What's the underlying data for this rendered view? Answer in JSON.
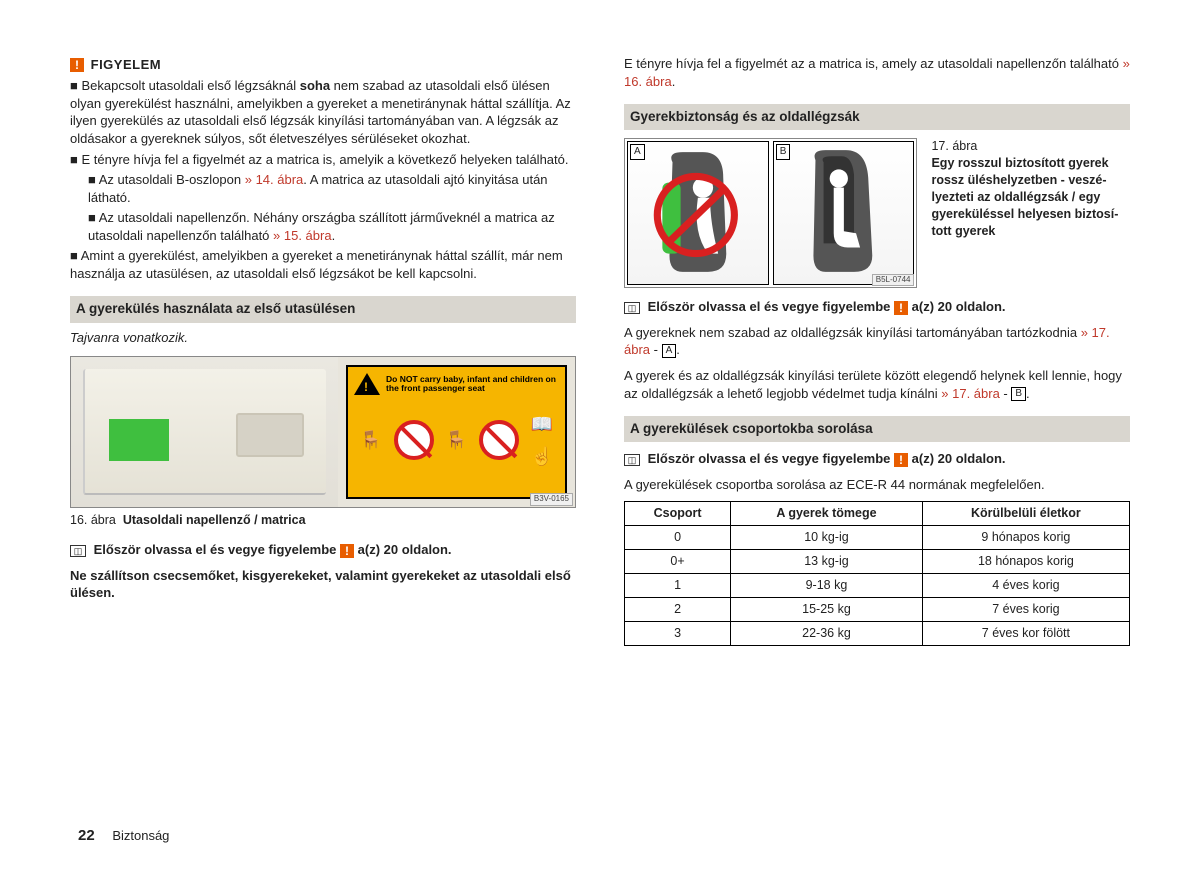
{
  "warn": {
    "title": "FIGYELEM",
    "b1a": "Bekapcsolt utasoldali első légzsáknál ",
    "b1bold": "soha",
    "b1b": " nem szabad az utasoldali első ülésen olyan gyerekülést használni, amelyikben a gyereket a menetirány­nak háttal szállítja. Az ilyen gyerekülés az utasoldali első légzsák kinyílási tartományában van. A légzsák az oldásakor a gyereknek súlyos, sőt életve­szélyes sérüléseket okozhat.",
    "b2": "E tényre hívja fel a figyelmét az a matrica is, amelyik a következő helye­ken található.",
    "b3a": "Az utasoldali B-oszlopon ",
    "b3ref": "» 14. ábra",
    "b3b": ". A matrica az utasoldali ajtó kinyitása után látható.",
    "b4a": "Az utasoldali napellenzőn. Néhány országba szállított járműveknél a matrica az utasoldali napellenzőn található ",
    "b4ref": "» 15. ábra",
    "b4b": ".",
    "b5": "Amint a gyerekülést, amelyikben a gyereket a menetiránynak háttal szál­lít, már nem használja az utasülésen, az utasoldali első légzsákot be kell kapcsolni."
  },
  "sec1": {
    "title": "A gyerekülés használata az első utasülésen",
    "note": "Tajvanra vonatkozik.",
    "sticker_text": "Do NOT carry baby, infant and children on the front passenger seat",
    "code": "B3V-0165",
    "caption_num": "16. ábra",
    "caption_text": "Utasoldali napellenző / matrica",
    "read_a": "Először olvassa el és vegye figyelembe ",
    "read_b": " a(z) 20 oldalon.",
    "noship": "Ne szállítson csecsemőket, kisgyerekeket, valamint gyerekeket az utasoldali első ülésen."
  },
  "right_intro_a": "E tényre hívja fel a figyelmét az a matrica is, amely az utasoldali napellenzőn található ",
  "right_intro_ref": "» 16. ábra",
  "right_intro_b": ".",
  "sec2": {
    "title": "Gyerekbiztonság és az oldallégzsák",
    "fig_num": "17. ábra",
    "fig_text": "Egy rosszul biztosított gyerek rossz üléshelyzetben - veszé­lyezteti az oldallégzsák / egy gyereküléssel helyesen biztosí­tott gyerek",
    "code": "B5L-0744",
    "read_a": "Először olvassa el és vegye figyelembe ",
    "read_b": " a(z) 20 oldalon.",
    "p1a": "A gyereknek nem szabad az oldallégzsák kinyílási tartományában tartózkodnia ",
    "p1ref": "» 17. ábra",
    "p1dash": " - ",
    "p2a": "A gyerek és az oldallégzsák kinyílási területe között elegendő helynek kell len­nie, hogy az oldallégzsák a lehető legjobb védelmet tudja kínálni ",
    "p2ref": "» 17. ábra",
    "p2dash": " - "
  },
  "sec3": {
    "title": "A gyerekülések csoportokba sorolása",
    "read_a": "Először olvassa el és vegye figyelembe ",
    "read_b": " a(z) 20 oldalon.",
    "intro": "A gyerekülések csoportba sorolása az ECE-R 44 normának megfelelően.",
    "headers": [
      "Csoport",
      "A gyerek tömege",
      "Körülbelüli életkor"
    ],
    "rows": [
      [
        "0",
        "10 kg-ig",
        "9 hónapos korig"
      ],
      [
        "0+",
        "13 kg-ig",
        "18 hónapos korig"
      ],
      [
        "1",
        "9-18 kg",
        "4 éves korig"
      ],
      [
        "2",
        "15-25 kg",
        "7 éves korig"
      ],
      [
        "3",
        "22-36 kg",
        "7 éves kor fölött"
      ]
    ]
  },
  "footer": {
    "page": "22",
    "section": "Biztonság"
  },
  "letters": {
    "A": "A",
    "B": "B"
  }
}
